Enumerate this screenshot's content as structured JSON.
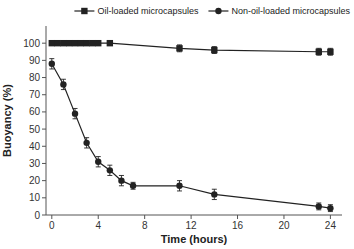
{
  "chart_data": {
    "type": "line",
    "xlabel": "Time (hours)",
    "ylabel": "Buoyancy (%)",
    "series": [
      {
        "name": "Oil-loaded microcapsules",
        "color": "#222222",
        "marker": "square",
        "line_style": "solid",
        "x": [
          0,
          0.5,
          1,
          1.5,
          2,
          2.5,
          3,
          3.5,
          4,
          5,
          11,
          14,
          23,
          24
        ],
        "values": [
          100,
          100,
          100,
          100,
          100,
          100,
          100,
          100,
          100,
          100,
          97,
          96,
          95,
          95
        ],
        "errors": [
          1,
          1,
          1,
          1,
          1,
          1,
          1,
          1,
          1,
          1,
          2,
          2,
          2,
          2
        ]
      },
      {
        "name": "Non-oil-loaded microcapsules",
        "color": "#222222",
        "marker": "circle",
        "line_style": "solid",
        "x": [
          0,
          1,
          2,
          3,
          4,
          5,
          6,
          7,
          11,
          14,
          23,
          24
        ],
        "values": [
          88,
          76,
          59,
          42,
          31,
          26,
          20,
          17,
          17,
          12,
          5,
          4
        ],
        "errors": [
          3,
          3,
          3,
          3,
          3,
          3,
          3,
          2,
          3,
          3,
          2,
          2
        ]
      }
    ],
    "xlim": [
      -0.5,
      25
    ],
    "ylim": [
      0,
      110
    ],
    "xticks": [
      0,
      4,
      8,
      12,
      16,
      20,
      24
    ],
    "yticks": [
      0,
      10,
      20,
      30,
      40,
      50,
      60,
      70,
      80,
      90,
      100
    ],
    "grid": false,
    "legend": "upper-right"
  }
}
